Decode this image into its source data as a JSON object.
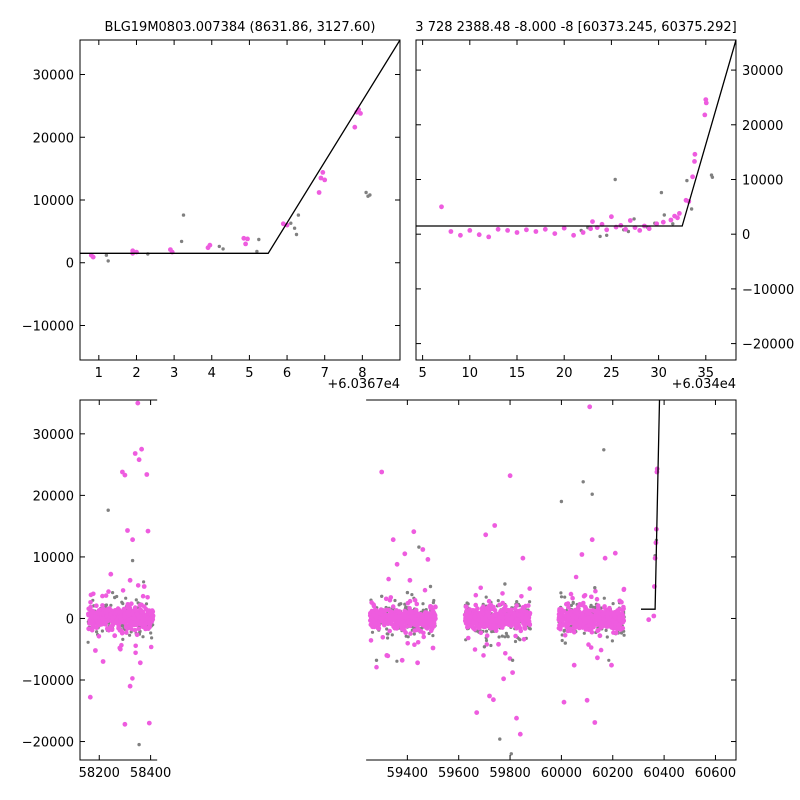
{
  "chart_data": [
    {
      "type": "scatter",
      "title": "BLG19M0803.007384 (8631.86, 3127.60)",
      "xlabel": "",
      "ylabel": "",
      "x_offset_label": "+6.0367e4",
      "xlim": [
        60367.5,
        60376.0
      ],
      "ylim": [
        -15500,
        35500
      ],
      "xticks": [
        60368,
        60369,
        60370,
        60371,
        60372,
        60373,
        60374,
        60375
      ],
      "xtick_labels": [
        "1",
        "2",
        "3",
        "4",
        "5",
        "6",
        "7",
        "8"
      ],
      "yticks": [
        -10000,
        0,
        10000,
        20000,
        30000
      ],
      "ytick_labels": [
        "−10000",
        "0",
        "10000",
        "20000",
        "30000"
      ],
      "grid": false,
      "series": [
        {
          "color": "#ee5cdf",
          "points": [
            [
              60367.8,
              1200
            ],
            [
              60367.85,
              900
            ],
            [
              60368.9,
              1900
            ],
            [
              60368.9,
              1500
            ],
            [
              60369.0,
              1700
            ],
            [
              60369.9,
              2100
            ],
            [
              60369.95,
              1700
            ],
            [
              60370.9,
              2400
            ],
            [
              60370.95,
              2800
            ],
            [
              60371.85,
              3900
            ],
            [
              60371.9,
              3000
            ],
            [
              60371.95,
              3800
            ],
            [
              60372.9,
              6200
            ],
            [
              60373.0,
              6000
            ],
            [
              60373.85,
              11200
            ],
            [
              60373.9,
              13500
            ],
            [
              60373.95,
              14400
            ],
            [
              60374.0,
              13200
            ],
            [
              60374.8,
              21600
            ],
            [
              60374.85,
              24000
            ],
            [
              60374.9,
              24400
            ],
            [
              60374.95,
              23800
            ]
          ]
        },
        {
          "color": "#808080",
          "points": [
            [
              60368.2,
              1200
            ],
            [
              60368.25,
              300
            ],
            [
              60369.3,
              1400
            ],
            [
              60370.2,
              3400
            ],
            [
              60370.25,
              7600
            ],
            [
              60371.2,
              2600
            ],
            [
              60371.3,
              2200
            ],
            [
              60372.2,
              1800
            ],
            [
              60372.25,
              3700
            ],
            [
              60373.2,
              5500
            ],
            [
              60373.25,
              4500
            ],
            [
              60373.3,
              7600
            ],
            [
              60373.1,
              6300
            ],
            [
              60375.1,
              11200
            ],
            [
              60375.2,
              10800
            ],
            [
              60375.15,
              10600
            ]
          ]
        }
      ],
      "model": [
        [
          60367.5,
          1500
        ],
        [
          60372.5,
          1500
        ],
        [
          60376.0,
          35500
        ]
      ]
    },
    {
      "type": "scatter",
      "title": "3 728 2388.48 -8.000 -8 [60373.245, 60375.292]",
      "xlabel": "",
      "ylabel": "",
      "x_offset_label": "+6.034e4",
      "xlim": [
        60344.3,
        60378.2
      ],
      "ylim": [
        -23000,
        35500
      ],
      "xticks": [
        60345,
        60350,
        60355,
        60360,
        60365,
        60370,
        60375
      ],
      "xtick_labels": [
        "5",
        "10",
        "15",
        "20",
        "25",
        "30",
        "35"
      ],
      "yticks": [
        -20000,
        -10000,
        0,
        10000,
        20000,
        30000
      ],
      "ytick_labels": [
        "−20000",
        "−10000",
        "0",
        "10000",
        "20000",
        "30000"
      ],
      "grid": false,
      "series": [
        {
          "color": "#ee5cdf",
          "points": [
            [
              60347.0,
              5000
            ],
            [
              60348.0,
              500
            ],
            [
              60349.0,
              -200
            ],
            [
              60350.0,
              700
            ],
            [
              60351.0,
              -100
            ],
            [
              60352.0,
              -500
            ],
            [
              60353.0,
              900
            ],
            [
              60354.0,
              700
            ],
            [
              60355.0,
              300
            ],
            [
              60356.0,
              800
            ],
            [
              60357.0,
              500
            ],
            [
              60358.0,
              900
            ],
            [
              60359.0,
              100
            ],
            [
              60360.0,
              1100
            ],
            [
              60361.0,
              -200
            ],
            [
              60362.0,
              300
            ],
            [
              60362.8,
              1000
            ],
            [
              60363.0,
              2300
            ],
            [
              60363.5,
              1200
            ],
            [
              60364.0,
              1800
            ],
            [
              60364.5,
              800
            ],
            [
              60365.0,
              3200
            ],
            [
              60365.5,
              1300
            ],
            [
              60366.0,
              1600
            ],
            [
              60366.5,
              900
            ],
            [
              60367.0,
              2500
            ],
            [
              60367.5,
              1200
            ],
            [
              60368.0,
              700
            ],
            [
              60368.5,
              1500
            ],
            [
              60369.0,
              1000
            ],
            [
              60369.8,
              1900
            ],
            [
              60370.5,
              2200
            ],
            [
              60371.3,
              2600
            ],
            [
              60371.7,
              3300
            ],
            [
              60372.0,
              3000
            ],
            [
              60372.2,
              3800
            ],
            [
              60372.9,
              6200
            ],
            [
              60373.2,
              6000
            ],
            [
              60373.6,
              10500
            ],
            [
              60373.8,
              13300
            ],
            [
              60373.85,
              14600
            ],
            [
              60374.9,
              21800
            ],
            [
              60375.0,
              24600
            ],
            [
              60375.05,
              24000
            ]
          ]
        },
        {
          "color": "#808080",
          "points": [
            [
              60361.8,
              700
            ],
            [
              60362.5,
              1200
            ],
            [
              60363.8,
              -400
            ],
            [
              60364.5,
              -200
            ],
            [
              60365.4,
              10000
            ],
            [
              60366.3,
              800
            ],
            [
              60366.8,
              500
            ],
            [
              60367.4,
              2800
            ],
            [
              60368.8,
              1300
            ],
            [
              60369.6,
              2000
            ],
            [
              60370.3,
              7600
            ],
            [
              60370.6,
              3500
            ],
            [
              60371.5,
              1900
            ],
            [
              60373.0,
              9800
            ],
            [
              60373.5,
              4600
            ],
            [
              60375.6,
              10800
            ],
            [
              60375.7,
              10400
            ]
          ]
        }
      ],
      "model": [
        [
          60344.3,
          1500
        ],
        [
          60372.5,
          1500
        ],
        [
          60378.2,
          35500
        ]
      ]
    },
    {
      "type": "scatter",
      "title": "",
      "xlabel": "",
      "ylabel": "",
      "xlim": [
        58125,
        60680
      ],
      "ylim": [
        -23000,
        35500
      ],
      "xticks": [
        58200,
        58400,
        59400,
        59600,
        59800,
        60000,
        60200,
        60400,
        60600
      ],
      "xtick_labels": [
        "58200",
        "58400",
        "59400",
        "59600",
        "59800",
        "60000",
        "60200",
        "60400",
        "60600"
      ],
      "yticks": [
        -20000,
        -10000,
        0,
        10000,
        20000,
        30000
      ],
      "ytick_labels": [
        "−20000",
        "−10000",
        "0",
        "10000",
        "20000",
        "30000"
      ],
      "grid": false,
      "seasons": [
        {
          "x0": 58155,
          "x1": 58410
        },
        {
          "x0": 59255,
          "x1": 59510
        },
        {
          "x0": 59625,
          "x1": 59880
        },
        {
          "x0": 59990,
          "x1": 60245
        }
      ],
      "colors": {
        "primary": "#ee5cdf",
        "secondary": "#808080"
      },
      "outliers": [
        {
          "color": "#ee5cdf",
          "points": [
            [
              58165,
              -12800
            ],
            [
              58185,
              -5200
            ],
            [
              58215,
              -7000
            ],
            [
              58245,
              7200
            ],
            [
              58260,
              -2800
            ],
            [
              58280,
              -4800
            ],
            [
              58290,
              23800
            ],
            [
              58300,
              23300
            ],
            [
              58310,
              14300
            ],
            [
              58320,
              6200
            ],
            [
              58330,
              12800
            ],
            [
              58340,
              26800
            ],
            [
              58350,
              35000
            ],
            [
              58355,
              25800
            ],
            [
              58365,
              27500
            ],
            [
              58375,
              5200
            ],
            [
              58385,
              23400
            ],
            [
              58390,
              14200
            ],
            [
              58395,
              -17000
            ],
            [
              58300,
              -17200
            ],
            [
              58320,
              -11000
            ],
            [
              58360,
              -7200
            ],
            [
              59300,
              23800
            ],
            [
              59320,
              -6000
            ],
            [
              59345,
              12800
            ],
            [
              59360,
              8800
            ],
            [
              59380,
              -6800
            ],
            [
              59390,
              10500
            ],
            [
              59410,
              6200
            ],
            [
              59425,
              14100
            ],
            [
              59440,
              -7200
            ],
            [
              59460,
              11200
            ],
            [
              59480,
              9600
            ],
            [
              59500,
              -4800
            ],
            [
              59705,
              13600
            ],
            [
              59720,
              -12600
            ],
            [
              59735,
              -13200
            ],
            [
              59740,
              15100
            ],
            [
              59755,
              -4200
            ],
            [
              59775,
              -9800
            ],
            [
              59800,
              23200
            ],
            [
              59810,
              -8800
            ],
            [
              59825,
              -16200
            ],
            [
              59840,
              -18800
            ],
            [
              59850,
              9800
            ],
            [
              59670,
              -15300
            ],
            [
              60010,
              -13600
            ],
            [
              60050,
              -7600
            ],
            [
              60080,
              10400
            ],
            [
              60100,
              -13300
            ],
            [
              60110,
              34400
            ],
            [
              60120,
              12800
            ],
            [
              60130,
              -16900
            ],
            [
              60140,
              -6400
            ],
            [
              60150,
              -2800
            ],
            [
              60170,
              9800
            ],
            [
              60195,
              -7600
            ],
            [
              60210,
              10600
            ],
            [
              60340,
              -200
            ],
            [
              60360,
              400
            ],
            [
              60362,
              5200
            ],
            [
              60365,
              9800
            ],
            [
              60368,
              12300
            ],
            [
              60370,
              14500
            ],
            [
              60372,
              23800
            ],
            [
              60373,
              24300
            ]
          ]
        },
        {
          "color": "#808080",
          "points": [
            [
              58235,
              17600
            ],
            [
              58260,
              3400
            ],
            [
              58290,
              -1200
            ],
            [
              58330,
              9400
            ],
            [
              58355,
              -20500
            ],
            [
              59280,
              -6800
            ],
            [
              59300,
              3600
            ],
            [
              59400,
              4200
            ],
            [
              59445,
              11600
            ],
            [
              59490,
              5200
            ],
            [
              59700,
              -4600
            ],
            [
              59760,
              -19600
            ],
            [
              59780,
              5600
            ],
            [
              59805,
              -22000
            ],
            [
              59810,
              -6800
            ],
            [
              60000,
              19000
            ],
            [
              60015,
              -4000
            ],
            [
              60085,
              22200
            ],
            [
              60120,
              20200
            ],
            [
              60130,
              5000
            ],
            [
              60165,
              27400
            ],
            [
              60365,
              10200
            ],
            [
              60370,
              12700
            ]
          ]
        }
      ],
      "model": [
        [
          60310,
          1500
        ],
        [
          60365,
          1500
        ],
        [
          60382,
          35500
        ]
      ]
    }
  ]
}
